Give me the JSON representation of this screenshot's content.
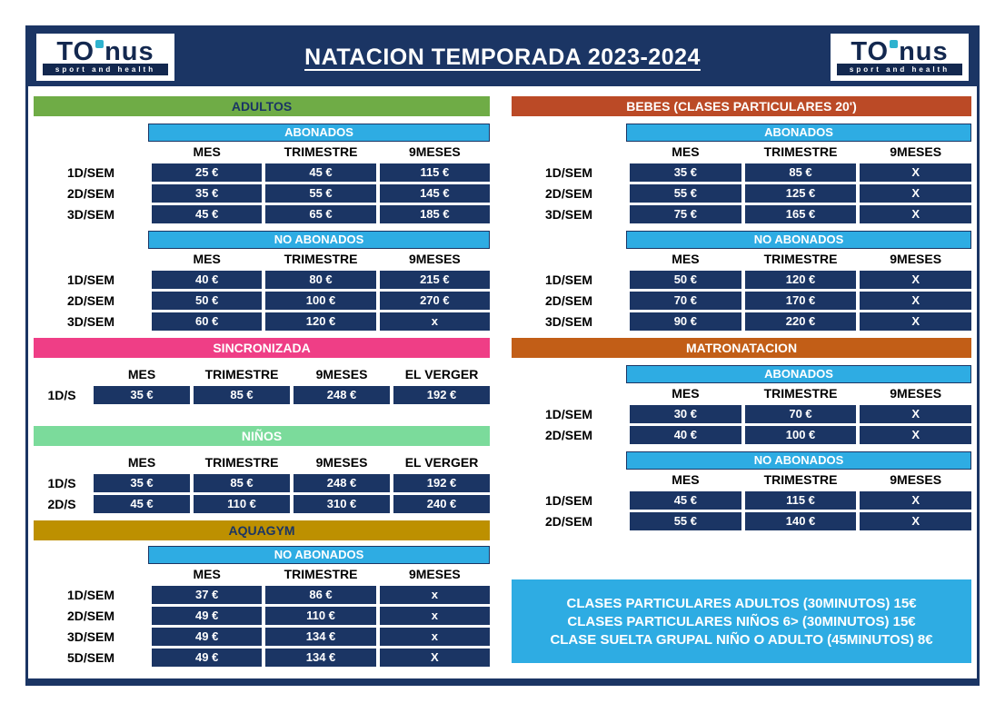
{
  "title": "NATACION TEMPORADA 2023-2024",
  "logo": {
    "brand_left": "TO",
    "brand_right": "nus",
    "tagline": "sport and health",
    "square_icon": "cyan-square"
  },
  "colors": {
    "navy": "#1B3564",
    "light_blue_band": "#2EACE3",
    "adultos_green": "#6FAC46",
    "sincronizada_pink": "#EF3E86",
    "ninos_green": "#7BDB9B",
    "aquagym_gold": "#BD9000",
    "bebes_brick": "#BB4A26",
    "matronatacion_orange": "#C25E17",
    "notes_blue": "#2EACE3",
    "cell_navy": "#1B3564"
  },
  "sections": {
    "adultos": {
      "title": "ADULTOS",
      "colors": {
        "bg": "#6FAC46",
        "fg": "#1B3564"
      },
      "blocks": [
        {
          "subtitle": "ABONADOS",
          "columns": [
            "MES",
            "TRIMESTRE",
            "9MESES"
          ],
          "rows": [
            {
              "label": "1D/SEM",
              "values": [
                "25 €",
                "45 €",
                "115 €"
              ]
            },
            {
              "label": "2D/SEM",
              "values": [
                "35 €",
                "55 €",
                "145 €"
              ]
            },
            {
              "label": "3D/SEM",
              "values": [
                "45 €",
                "65 €",
                "185 €"
              ]
            }
          ]
        },
        {
          "subtitle": "NO ABONADOS",
          "columns": [
            "MES",
            "TRIMESTRE",
            "9MESES"
          ],
          "rows": [
            {
              "label": "1D/SEM",
              "values": [
                "40 €",
                "80 €",
                "215 €"
              ]
            },
            {
              "label": "2D/SEM",
              "values": [
                "50 €",
                "100 €",
                "270 €"
              ]
            },
            {
              "label": "3D/SEM",
              "values": [
                "60 €",
                "120 €",
                "x"
              ]
            }
          ]
        }
      ]
    },
    "sincronizada": {
      "title": "SINCRONIZADA",
      "colors": {
        "bg": "#EF3E86",
        "fg": "#FFFFFF"
      },
      "blocks": [
        {
          "subtitle": null,
          "columns": [
            "MES",
            "TRIMESTRE",
            "9MESES",
            "EL VERGER"
          ],
          "rows": [
            {
              "label": "1D/S",
              "values": [
                "35 €",
                "85 €",
                "248 €",
                "192 €"
              ]
            }
          ]
        }
      ]
    },
    "ninos": {
      "title": "NIÑOS",
      "colors": {
        "bg": "#7BDB9B",
        "fg": "#FFFFFF"
      },
      "blocks": [
        {
          "subtitle": null,
          "columns": [
            "MES",
            "TRIMESTRE",
            "9MESES",
            "EL VERGER"
          ],
          "rows": [
            {
              "label": "1D/S",
              "values": [
                "35 €",
                "85 €",
                "248 €",
                "192 €"
              ]
            },
            {
              "label": "2D/S",
              "values": [
                "45 €",
                "110 €",
                "310 €",
                "240 €"
              ]
            }
          ]
        }
      ]
    },
    "aquagym": {
      "title": "AQUAGYM",
      "colors": {
        "bg": "#BD9000",
        "fg": "#1B3564"
      },
      "blocks": [
        {
          "subtitle": "NO ABONADOS",
          "columns": [
            "MES",
            "TRIMESTRE",
            "9MESES"
          ],
          "rows": [
            {
              "label": "1D/SEM",
              "values": [
                "37 €",
                "86 €",
                "x"
              ]
            },
            {
              "label": "2D/SEM",
              "values": [
                "49 €",
                "110 €",
                "x"
              ]
            },
            {
              "label": "3D/SEM",
              "values": [
                "49 €",
                "134 €",
                "x"
              ]
            },
            {
              "label": "5D/SEM",
              "values": [
                "49 €",
                "134 €",
                "X"
              ]
            }
          ]
        }
      ]
    },
    "bebes": {
      "title": "BEBES (CLASES PARTICULARES 20')",
      "colors": {
        "bg": "#BB4A26",
        "fg": "#FFFFFF"
      },
      "blocks": [
        {
          "subtitle": "ABONADOS",
          "columns": [
            "MES",
            "TRIMESTRE",
            "9MESES"
          ],
          "rows": [
            {
              "label": "1D/SEM",
              "values": [
                "35 €",
                "85 €",
                "X"
              ]
            },
            {
              "label": "2D/SEM",
              "values": [
                "55 €",
                "125 €",
                "X"
              ]
            },
            {
              "label": "3D/SEM",
              "values": [
                "75 €",
                "165 €",
                "X"
              ]
            }
          ]
        },
        {
          "subtitle": "NO ABONADOS",
          "columns": [
            "MES",
            "TRIMESTRE",
            "9MESES"
          ],
          "rows": [
            {
              "label": "1D/SEM",
              "values": [
                "50 €",
                "120 €",
                "X"
              ]
            },
            {
              "label": "2D/SEM",
              "values": [
                "70 €",
                "170 €",
                "X"
              ]
            },
            {
              "label": "3D/SEM",
              "values": [
                "90 €",
                "220 €",
                "X"
              ]
            }
          ]
        }
      ]
    },
    "matronatacion": {
      "title": "MATRONATACION",
      "colors": {
        "bg": "#C25E17",
        "fg": "#FFFFFF"
      },
      "blocks": [
        {
          "subtitle": "ABONADOS",
          "columns": [
            "MES",
            "TRIMESTRE",
            "9MESES"
          ],
          "rows": [
            {
              "label": "1D/SEM",
              "values": [
                "30 €",
                "70 €",
                "X"
              ]
            },
            {
              "label": "2D/SEM",
              "values": [
                "40 €",
                "100 €",
                "X"
              ]
            }
          ]
        },
        {
          "subtitle": "NO ABONADOS",
          "columns": [
            "MES",
            "TRIMESTRE",
            "9MESES"
          ],
          "rows": [
            {
              "label": "1D/SEM",
              "values": [
                "45 €",
                "115 €",
                "X"
              ]
            },
            {
              "label": "2D/SEM",
              "values": [
                "55 €",
                "140 €",
                "X"
              ]
            }
          ]
        }
      ]
    }
  },
  "notes": [
    "CLASES PARTICULARES ADULTOS (30MINUTOS) 15€",
    "CLASES PARTICULARES NIÑOS 6> (30MINUTOS) 15€",
    "CLASE SUELTA GRUPAL NIÑO O ADULTO (45MINUTOS) 8€"
  ]
}
